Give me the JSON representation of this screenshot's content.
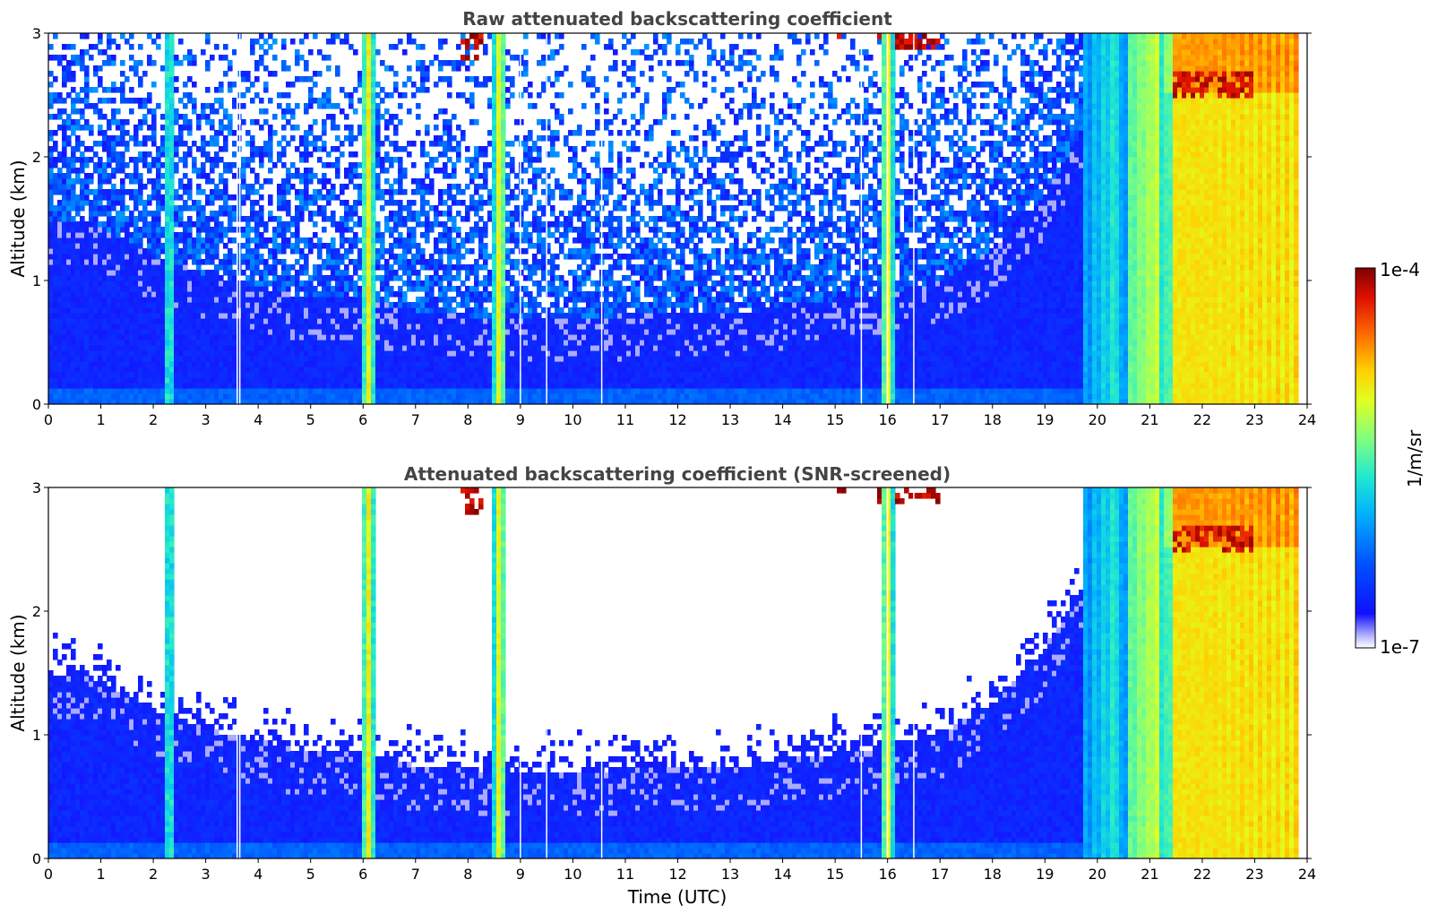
{
  "chart_data": [
    {
      "type": "heatmap",
      "title": "Raw attenuated backscattering coefficient",
      "xlabel": "",
      "ylabel": "Altitude (km)",
      "xlim": [
        0,
        24
      ],
      "ylim": [
        0,
        3
      ],
      "xticks": [
        "0",
        "1",
        "2",
        "3",
        "4",
        "5",
        "6",
        "7",
        "8",
        "9",
        "10",
        "11",
        "12",
        "13",
        "14",
        "15",
        "16",
        "17",
        "18",
        "19",
        "20",
        "21",
        "22",
        "23",
        "24"
      ],
      "yticks": [
        "0",
        "1",
        "2",
        "3"
      ],
      "colormap": "jet",
      "screened": false
    },
    {
      "type": "heatmap",
      "title": "Attenuated backscattering coefficient (SNR-screened)",
      "xlabel": "Time (UTC)",
      "ylabel": "Altitude (km)",
      "xlim": [
        0,
        24
      ],
      "ylim": [
        0,
        3
      ],
      "xticks": [
        "0",
        "1",
        "2",
        "3",
        "4",
        "5",
        "6",
        "7",
        "8",
        "9",
        "10",
        "11",
        "12",
        "13",
        "14",
        "15",
        "16",
        "17",
        "18",
        "19",
        "20",
        "21",
        "22",
        "23",
        "24"
      ],
      "yticks": [
        "0",
        "1",
        "2",
        "3"
      ],
      "colormap": "jet",
      "screened": true
    }
  ],
  "colorbar": {
    "label": "1/m/sr",
    "max_label": "1e-4",
    "min_label": "1e-7",
    "scale": "log"
  },
  "features": {
    "boundary_layer_top_km": [
      [
        0,
        1.5
      ],
      [
        1,
        1.45
      ],
      [
        2,
        1.2
      ],
      [
        3,
        1.05
      ],
      [
        4,
        0.95
      ],
      [
        5,
        0.85
      ],
      [
        6,
        0.85
      ],
      [
        7,
        0.75
      ],
      [
        8,
        0.72
      ],
      [
        9,
        0.68
      ],
      [
        10,
        0.7
      ],
      [
        11,
        0.72
      ],
      [
        12,
        0.72
      ],
      [
        13,
        0.72
      ],
      [
        14,
        0.8
      ],
      [
        15,
        0.85
      ],
      [
        16,
        0.9
      ],
      [
        17,
        1.0
      ],
      [
        18,
        1.25
      ],
      [
        19,
        1.7
      ],
      [
        19.7,
        2.2
      ]
    ],
    "rain_columns_hours": [
      6.1,
      8.6,
      16.0,
      2.3
    ],
    "data_gap_lines_hours": [
      3.6,
      3.65,
      9.0,
      9.5,
      10.55,
      15.5,
      16.0,
      16.5
    ],
    "high_cloud_segments": [
      {
        "t0": 7.9,
        "t1": 8.3,
        "base_km": 2.8
      },
      {
        "t0": 15.0,
        "t1": 15.2,
        "base_km": 2.95
      },
      {
        "t0": 15.8,
        "t1": 17.0,
        "base_km": 2.85
      },
      {
        "t0": 21.4,
        "t1": 23.0,
        "base_km": 2.5
      }
    ],
    "precip_start_hour": 19.7,
    "data_end_hour": 23.8
  }
}
